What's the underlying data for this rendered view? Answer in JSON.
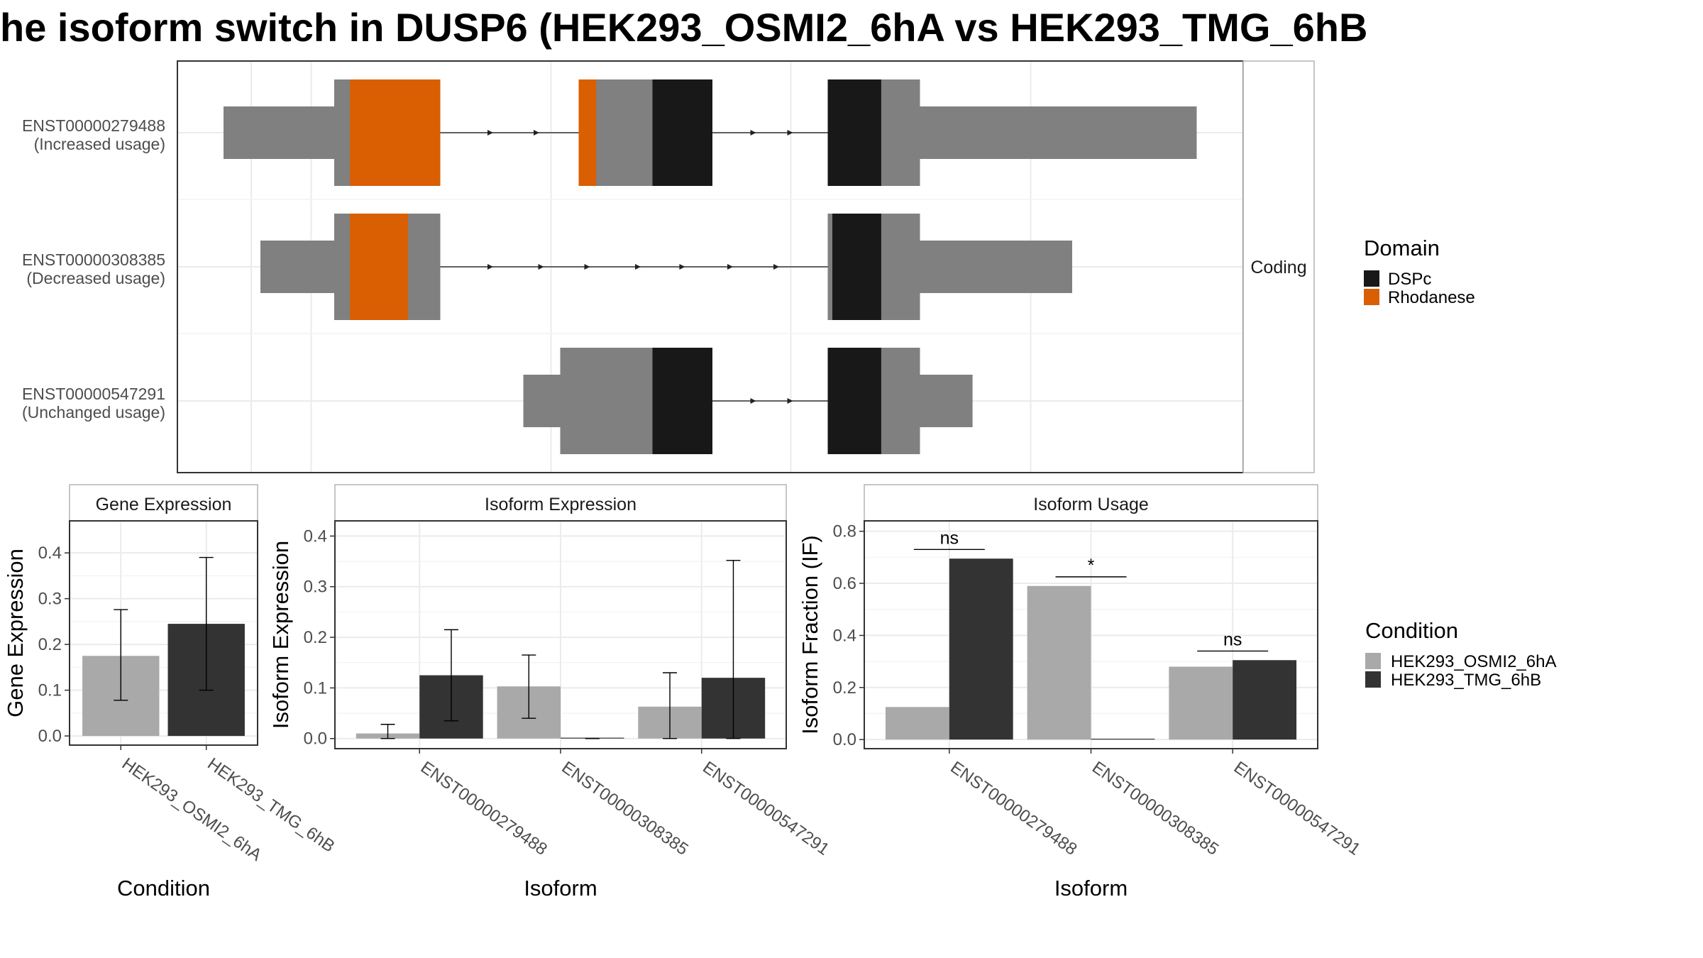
{
  "title": "he isoform switch in DUSP6 (HEK293_OSMI2_6hA vs HEK293_TMG_6hB",
  "colors": {
    "exon": "#808080",
    "DSPc": "#181818",
    "Rhodanese": "#d95f02",
    "cond_a": "#a9a9a9",
    "cond_b": "#333333"
  },
  "transcript_panel": {
    "strip_label": "Coding",
    "transcripts": [
      {
        "id": "ENST00000279488",
        "usage": "(Increased usage)",
        "exons": [
          [
            0.0,
            1.2
          ],
          [
            1.2,
            2.35
          ],
          [
            3.85,
            5.3
          ],
          [
            6.55,
            10.55
          ]
        ],
        "cds": [
          [
            1.2,
            2.35
          ],
          [
            3.85,
            5.3
          ],
          [
            6.55,
            7.55
          ]
        ],
        "domains": [
          {
            "name": "Rhodanese",
            "start": 1.37,
            "end": 2.35
          },
          {
            "name": "Rhodanese",
            "start": 3.85,
            "end": 4.04
          },
          {
            "name": "DSPc",
            "start": 4.65,
            "end": 5.3
          },
          {
            "name": "DSPc",
            "start": 6.55,
            "end": 7.13
          }
        ],
        "arrows": [
          2.9,
          3.4,
          5.75,
          6.15
        ]
      },
      {
        "id": "ENST00000308385",
        "usage": "(Decreased usage)",
        "exons": [
          [
            0.4,
            1.2
          ],
          [
            1.2,
            2.35
          ],
          [
            6.55,
            9.2
          ]
        ],
        "cds": [
          [
            1.2,
            2.35
          ],
          [
            6.55,
            7.55
          ]
        ],
        "domains": [
          {
            "name": "Rhodanese",
            "start": 1.37,
            "end": 2.0
          },
          {
            "name": "DSPc",
            "start": 6.6,
            "end": 7.13
          }
        ],
        "arrows": [
          2.9,
          3.45,
          3.95,
          4.5,
          4.98,
          5.5,
          6.0
        ]
      },
      {
        "id": "ENST00000547291",
        "usage": "(Unchanged usage)",
        "exons": [
          [
            3.25,
            5.3
          ],
          [
            6.55,
            8.12
          ]
        ],
        "cds": [
          [
            3.65,
            5.3
          ],
          [
            6.55,
            7.55
          ]
        ],
        "domains": [
          {
            "name": "DSPc",
            "start": 4.65,
            "end": 5.3
          },
          {
            "name": "DSPc",
            "start": 6.55,
            "end": 7.13
          }
        ],
        "arrows": [
          5.75,
          6.15
        ]
      }
    ],
    "domain_legend": {
      "title": "Domain",
      "items": [
        "DSPc",
        "Rhodanese"
      ]
    }
  },
  "chart_data": [
    {
      "type": "bar",
      "title": "Gene Expression",
      "xlabel": "Condition",
      "ylabel": "Gene Expression",
      "categories": [
        "HEK293_OSMI2_6hA",
        "HEK293_TMG_6hB"
      ],
      "ylim": [
        -0.02,
        0.47
      ],
      "yticks": [
        "0.0",
        "0.1",
        "0.2",
        "0.3",
        "0.4"
      ],
      "series": [
        {
          "category": "HEK293_OSMI2_6hA",
          "value": 0.175,
          "err_low": 0.078,
          "err_high": 0.276
        },
        {
          "category": "HEK293_TMG_6hB",
          "value": 0.245,
          "err_low": 0.1,
          "err_high": 0.39
        }
      ]
    },
    {
      "type": "bar",
      "title": "Isoform Expression",
      "xlabel": "Isoform",
      "ylabel": "Isoform Expression",
      "categories": [
        "ENST00000279488",
        "ENST00000308385",
        "ENST00000547291"
      ],
      "ylim": [
        -0.02,
        0.43
      ],
      "yticks": [
        "0.0",
        "0.1",
        "0.2",
        "0.3",
        "0.4"
      ],
      "series": [
        {
          "name": "HEK293_OSMI2_6hA",
          "values": [
            0.01,
            0.103,
            0.063
          ],
          "err_low": [
            0.0,
            0.04,
            0.0
          ],
          "err_high": [
            0.028,
            0.165,
            0.13
          ]
        },
        {
          "name": "HEK293_TMG_6hB",
          "values": [
            0.125,
            0.0,
            0.12
          ],
          "err_low": [
            0.035,
            0.0,
            0.0
          ],
          "err_high": [
            0.215,
            0.0,
            0.352
          ]
        }
      ]
    },
    {
      "type": "bar",
      "title": "Isoform Usage",
      "xlabel": "Isoform",
      "ylabel": "Isoform Fraction (IF)",
      "categories": [
        "ENST00000279488",
        "ENST00000308385",
        "ENST00000547291"
      ],
      "ylim": [
        -0.035,
        0.84
      ],
      "yticks": [
        "0.0",
        "0.2",
        "0.4",
        "0.6",
        "0.8"
      ],
      "series": [
        {
          "name": "HEK293_OSMI2_6hA",
          "values": [
            0.125,
            0.59,
            0.28
          ]
        },
        {
          "name": "HEK293_TMG_6hB",
          "values": [
            0.695,
            0.0,
            0.305
          ]
        }
      ],
      "significance": [
        {
          "category": "ENST00000279488",
          "label": "ns",
          "y": 0.73
        },
        {
          "category": "ENST00000308385",
          "label": "*",
          "y": 0.625
        },
        {
          "category": "ENST00000547291",
          "label": "ns",
          "y": 0.34
        }
      ]
    }
  ],
  "condition_legend": {
    "title": "Condition",
    "items": [
      "HEK293_OSMI2_6hA",
      "HEK293_TMG_6hB"
    ]
  }
}
